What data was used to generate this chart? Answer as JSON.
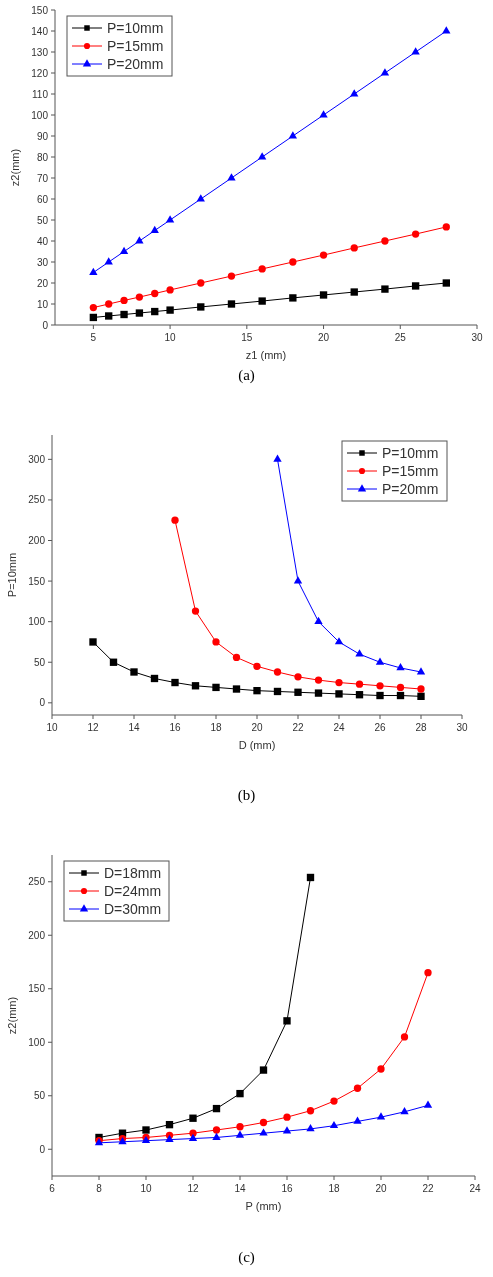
{
  "chart_data": [
    {
      "type": "line",
      "xlabel": "z1 (mm)",
      "ylabel": "z2(mm)",
      "xlim": [
        2.5,
        30
      ],
      "xticks": [
        5,
        10,
        15,
        20,
        25,
        30
      ],
      "ylim": [
        0,
        150
      ],
      "yticks": [
        0,
        10,
        20,
        30,
        40,
        50,
        60,
        70,
        80,
        90,
        100,
        110,
        120,
        130,
        140,
        150
      ],
      "legend": "top left",
      "grid": false,
      "annotations": [
        "(a)"
      ],
      "x": [
        5,
        6,
        7,
        8,
        9,
        10,
        12,
        14,
        16,
        18,
        20,
        22,
        24,
        26,
        28
      ],
      "series": [
        {
          "name": "P=10mm",
          "color": "#000000",
          "marker": "square",
          "values": [
            3.6,
            4.3,
            5,
            5.7,
            6.4,
            7.1,
            8.6,
            10,
            11.4,
            12.9,
            14.3,
            15.7,
            17.1,
            18.6,
            20
          ]
        },
        {
          "name": "P=15mm",
          "color": "#ff0000",
          "marker": "circle",
          "values": [
            8.3,
            10,
            11.7,
            13.3,
            15,
            16.7,
            20,
            23.3,
            26.7,
            30,
            33.3,
            36.7,
            40,
            43.3,
            46.7
          ]
        },
        {
          "name": "P=20mm",
          "color": "#0000ff",
          "marker": "triangle",
          "values": [
            25,
            30,
            35,
            40,
            45,
            50,
            60,
            70,
            80,
            90,
            100,
            110,
            120,
            130,
            140
          ]
        }
      ]
    },
    {
      "type": "line",
      "xlabel": "D (mm)",
      "ylabel": "P=10mm",
      "xlim": [
        10,
        30
      ],
      "xticks": [
        10,
        12,
        14,
        16,
        18,
        20,
        22,
        24,
        26,
        28,
        30
      ],
      "ylim": [
        -15,
        330
      ],
      "yticks": [
        0,
        50,
        100,
        150,
        200,
        250,
        300
      ],
      "legend": "top right",
      "grid": false,
      "annotations": [
        "(b)"
      ],
      "series": [
        {
          "name": "P=10mm",
          "color": "#000000",
          "marker": "square",
          "x": [
            12,
            13,
            14,
            15,
            16,
            17,
            18,
            19,
            20,
            21,
            22,
            23,
            24,
            25,
            26,
            27,
            28
          ],
          "values": [
            75,
            50,
            38,
            30,
            25,
            21,
            19,
            17,
            15,
            14,
            13,
            12,
            11,
            10,
            9,
            9,
            8
          ]
        },
        {
          "name": "P=15mm",
          "color": "#ff0000",
          "marker": "circle",
          "x": [
            16,
            17,
            18,
            19,
            20,
            21,
            22,
            23,
            24,
            25,
            26,
            27,
            28
          ],
          "values": [
            225,
            113,
            75,
            56,
            45,
            38,
            32,
            28,
            25,
            23,
            21,
            19,
            17
          ]
        },
        {
          "name": "P=20mm",
          "color": "#0000ff",
          "marker": "triangle",
          "x": [
            21,
            22,
            23,
            24,
            25,
            26,
            27,
            28
          ],
          "values": [
            300,
            150,
            100,
            75,
            60,
            50,
            43,
            38
          ]
        }
      ]
    },
    {
      "type": "line",
      "xlabel": "P (mm)",
      "ylabel": "z2(mm)",
      "xlim": [
        6,
        24
      ],
      "xticks": [
        6,
        8,
        10,
        12,
        14,
        16,
        18,
        20,
        22,
        24
      ],
      "ylim": [
        -25,
        275
      ],
      "yticks": [
        0,
        50,
        100,
        150,
        200,
        250
      ],
      "legend": "top left",
      "grid": false,
      "annotations": [
        "(c)"
      ],
      "series": [
        {
          "name": "D=18mm",
          "color": "#000000",
          "marker": "square",
          "x": [
            8,
            9,
            10,
            11,
            12,
            13,
            14,
            15,
            16,
            17
          ],
          "values": [
            11,
            15,
            18,
            23,
            29,
            38,
            52,
            74,
            120,
            254
          ]
        },
        {
          "name": "D=24mm",
          "color": "#ff0000",
          "marker": "circle",
          "x": [
            8,
            9,
            10,
            11,
            12,
            13,
            14,
            15,
            16,
            17,
            18,
            19,
            20,
            21,
            22
          ],
          "values": [
            8,
            10,
            11,
            13,
            15,
            18,
            21,
            25,
            30,
            36,
            45,
            57,
            75,
            105,
            165
          ]
        },
        {
          "name": "D=30mm",
          "color": "#0000ff",
          "marker": "triangle",
          "x": [
            8,
            9,
            10,
            11,
            12,
            13,
            14,
            15,
            16,
            17,
            18,
            19,
            20,
            21,
            22
          ],
          "values": [
            6,
            7,
            8,
            9,
            10,
            11,
            13,
            15,
            17,
            19,
            22,
            26,
            30,
            35,
            41
          ]
        }
      ]
    }
  ]
}
